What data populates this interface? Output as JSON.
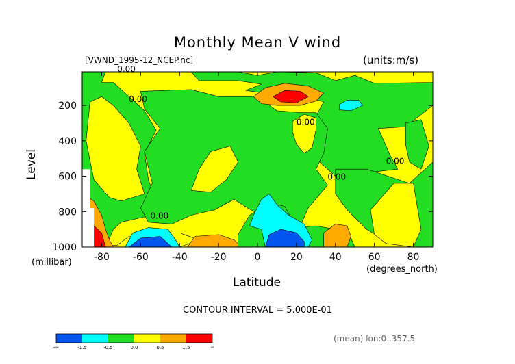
{
  "chart_data": {
    "type": "heatmap",
    "title": "Monthly Mean V wind",
    "source_label": "[VWND_1995-12_NCEP.nc]",
    "units_label": "(units:m/s)",
    "xlabel": "Latitude",
    "x_units": "(degrees_north)",
    "ylabel": "Level",
    "y_units": "(millibar)",
    "xlim": [
      -90,
      90
    ],
    "ylim": [
      1000,
      10
    ],
    "x_ticks": [
      -80,
      -60,
      -40,
      -20,
      0,
      20,
      40,
      60,
      80
    ],
    "y_ticks": [
      200,
      400,
      600,
      800,
      1000
    ],
    "contour_interval_text": "CONTOUR INTERVAL = 5.000E-01",
    "contour_labels": [
      {
        "text": "0.00",
        "lat": -72,
        "lev": 10
      },
      {
        "text": "0.00",
        "lat": -66,
        "lev": 180
      },
      {
        "text": "0.00",
        "lat": -55,
        "lev": 840
      },
      {
        "text": "0.00",
        "lat": 20,
        "lev": 310
      },
      {
        "text": "0.00",
        "lat": 36,
        "lev": 620
      },
      {
        "text": "0.00",
        "lat": 66,
        "lev": 530
      }
    ],
    "colorbar": {
      "colors": [
        "#0055ee",
        "#00ffff",
        "#22dd22",
        "#ffff00",
        "#ffaa00",
        "#ff0000"
      ],
      "tick_labels": [
        "-∞",
        "-1.5",
        "-0.5",
        "0.0",
        "0.5",
        "1.5",
        "∞"
      ]
    },
    "regions": [
      {
        "color": "#ffff00",
        "points": [
          [
            -90,
            10
          ],
          [
            90,
            10
          ],
          [
            90,
            1000
          ],
          [
            -90,
            1000
          ]
        ]
      },
      {
        "color": "#22dd22",
        "points": [
          [
            -90,
            10
          ],
          [
            -78,
            10
          ],
          [
            -80,
            70
          ],
          [
            -74,
            70
          ],
          [
            -66,
            150
          ],
          [
            -58,
            230
          ],
          [
            -52,
            340
          ],
          [
            -58,
            470
          ],
          [
            -56,
            620
          ],
          [
            -52,
            740
          ],
          [
            -58,
            830
          ],
          [
            -70,
            860
          ],
          [
            -74,
            900
          ],
          [
            -78,
            1000
          ],
          [
            -90,
            1000
          ]
        ]
      },
      {
        "color": "#ffff00",
        "points": [
          [
            -86,
            180
          ],
          [
            -80,
            150
          ],
          [
            -74,
            200
          ],
          [
            -66,
            300
          ],
          [
            -60,
            430
          ],
          [
            -62,
            560
          ],
          [
            -58,
            700
          ],
          [
            -70,
            740
          ],
          [
            -76,
            720
          ],
          [
            -84,
            620
          ],
          [
            -88,
            400
          ]
        ]
      },
      {
        "color": "#22dd22",
        "points": [
          [
            -66,
            10
          ],
          [
            -34,
            10
          ],
          [
            -30,
            60
          ],
          [
            -10,
            60
          ],
          [
            2,
            80
          ],
          [
            -6,
            115
          ],
          [
            10,
            140
          ],
          [
            22,
            170
          ],
          [
            28,
            160
          ],
          [
            34,
            180
          ],
          [
            30,
            260
          ],
          [
            26,
            340
          ],
          [
            28,
            420
          ],
          [
            32,
            520
          ],
          [
            40,
            600
          ],
          [
            56,
            580
          ],
          [
            72,
            560
          ],
          [
            68,
            480
          ],
          [
            62,
            330
          ],
          [
            76,
            320
          ],
          [
            90,
            200
          ],
          [
            90,
            10
          ],
          [
            90,
            70
          ],
          [
            60,
            75
          ],
          [
            50,
            30
          ],
          [
            40,
            60
          ],
          [
            30,
            15
          ],
          [
            10,
            10
          ],
          [
            0,
            30
          ],
          [
            -10,
            10
          ],
          [
            -34,
            10
          ]
        ]
      },
      {
        "color": "#22dd22",
        "points": [
          [
            -60,
            120
          ],
          [
            -34,
            110
          ],
          [
            -20,
            150
          ],
          [
            0,
            150
          ],
          [
            10,
            230
          ],
          [
            22,
            240
          ],
          [
            30,
            240
          ],
          [
            36,
            330
          ],
          [
            34,
            470
          ],
          [
            30,
            560
          ],
          [
            36,
            650
          ],
          [
            26,
            780
          ],
          [
            22,
            880
          ],
          [
            10,
            870
          ],
          [
            -5,
            780
          ],
          [
            -12,
            730
          ],
          [
            -22,
            790
          ],
          [
            -34,
            820
          ],
          [
            -44,
            870
          ],
          [
            -56,
            860
          ],
          [
            -60,
            780
          ],
          [
            -54,
            640
          ],
          [
            -58,
            460
          ],
          [
            -50,
            330
          ],
          [
            -58,
            220
          ]
        ]
      },
      {
        "color": "#ffff00",
        "points": [
          [
            -34,
            680
          ],
          [
            -30,
            560
          ],
          [
            -24,
            460
          ],
          [
            -14,
            430
          ],
          [
            -10,
            520
          ],
          [
            -16,
            620
          ],
          [
            -24,
            690
          ]
        ]
      },
      {
        "color": "#ffff00",
        "points": [
          [
            18,
            290
          ],
          [
            24,
            250
          ],
          [
            30,
            270
          ],
          [
            30,
            340
          ],
          [
            28,
            440
          ],
          [
            24,
            470
          ],
          [
            20,
            420
          ],
          [
            18,
            350
          ]
        ]
      },
      {
        "color": "#22dd22",
        "points": [
          [
            40,
            560
          ],
          [
            56,
            560
          ],
          [
            78,
            640
          ],
          [
            90,
            520
          ],
          [
            90,
            1000
          ],
          [
            80,
            1000
          ],
          [
            68,
            980
          ],
          [
            56,
            900
          ],
          [
            46,
            790
          ],
          [
            40,
            700
          ]
        ]
      },
      {
        "color": "#ffff00",
        "points": [
          [
            58,
            790
          ],
          [
            70,
            640
          ],
          [
            80,
            640
          ],
          [
            84,
            900
          ],
          [
            80,
            1000
          ],
          [
            66,
            980
          ],
          [
            60,
            930
          ]
        ]
      },
      {
        "color": "#22dd22",
        "points": [
          [
            76,
            300
          ],
          [
            84,
            280
          ],
          [
            88,
            430
          ],
          [
            84,
            560
          ],
          [
            78,
            520
          ],
          [
            76,
            420
          ]
        ]
      },
      {
        "color": "#ffff00",
        "points": [
          [
            -90,
            1000
          ],
          [
            -80,
            1000
          ],
          [
            -70,
            1000
          ],
          [
            -60,
            1000
          ],
          [
            -40,
            1000
          ],
          [
            -30,
            960
          ],
          [
            -40,
            920
          ],
          [
            -50,
            920
          ],
          [
            -66,
            940
          ],
          [
            -72,
            990
          ]
        ]
      },
      {
        "color": "#ffaa00",
        "points": [
          [
            -36,
            1000
          ],
          [
            -32,
            940
          ],
          [
            -20,
            930
          ],
          [
            -12,
            960
          ],
          [
            -8,
            1000
          ]
        ]
      },
      {
        "color": "#22dd22",
        "points": [
          [
            -10,
            930
          ],
          [
            -4,
            820
          ],
          [
            6,
            750
          ],
          [
            14,
            770
          ],
          [
            20,
            890
          ],
          [
            30,
            880
          ],
          [
            40,
            900
          ],
          [
            48,
            950
          ],
          [
            50,
            1000
          ],
          [
            -10,
            1000
          ]
        ]
      },
      {
        "color": "#ffaa00",
        "points": [
          [
            34,
            1000
          ],
          [
            34,
            920
          ],
          [
            40,
            870
          ],
          [
            46,
            880
          ],
          [
            48,
            940
          ],
          [
            46,
            1000
          ]
        ]
      },
      {
        "color": "#00ffff",
        "points": [
          [
            -2,
            820
          ],
          [
            2,
            730
          ],
          [
            6,
            700
          ],
          [
            10,
            760
          ],
          [
            16,
            820
          ],
          [
            24,
            870
          ],
          [
            28,
            960
          ],
          [
            26,
            1000
          ],
          [
            4,
            1000
          ],
          [
            2,
            900
          ],
          [
            -4,
            880
          ]
        ]
      },
      {
        "color": "#0055ee",
        "points": [
          [
            4,
            1000
          ],
          [
            6,
            930
          ],
          [
            12,
            900
          ],
          [
            20,
            920
          ],
          [
            24,
            970
          ],
          [
            24,
            1000
          ]
        ]
      },
      {
        "color": "#00ffff",
        "points": [
          [
            -68,
            1000
          ],
          [
            -64,
            920
          ],
          [
            -56,
            890
          ],
          [
            -46,
            900
          ],
          [
            -42,
            960
          ],
          [
            -40,
            1000
          ]
        ]
      },
      {
        "color": "#0055ee",
        "points": [
          [
            -66,
            1000
          ],
          [
            -60,
            950
          ],
          [
            -50,
            940
          ],
          [
            -46,
            980
          ],
          [
            -44,
            1000
          ]
        ]
      },
      {
        "color": "#ffaa00",
        "points": [
          [
            -90,
            1000
          ],
          [
            -90,
            700
          ],
          [
            -84,
            740
          ],
          [
            -80,
            820
          ],
          [
            -78,
            900
          ],
          [
            -76,
            960
          ],
          [
            -74,
            1000
          ]
        ]
      },
      {
        "color": "#ff0000",
        "points": [
          [
            -90,
            1000
          ],
          [
            -90,
            870
          ],
          [
            -84,
            880
          ],
          [
            -80,
            920
          ],
          [
            -78,
            1000
          ]
        ]
      },
      {
        "color": "#ffffff",
        "points": [
          [
            -90,
            560
          ],
          [
            -86,
            560
          ],
          [
            -86,
            780
          ],
          [
            -84,
            780
          ],
          [
            -84,
            1000
          ],
          [
            -90,
            1000
          ]
        ]
      },
      {
        "color": "#ffaa00",
        "points": [
          [
            -2,
            150
          ],
          [
            4,
            100
          ],
          [
            14,
            75
          ],
          [
            26,
            90
          ],
          [
            34,
            130
          ],
          [
            30,
            175
          ],
          [
            22,
            200
          ],
          [
            10,
            200
          ],
          [
            2,
            190
          ]
        ]
      },
      {
        "color": "#ff0000",
        "points": [
          [
            8,
            150
          ],
          [
            14,
            115
          ],
          [
            22,
            120
          ],
          [
            26,
            150
          ],
          [
            20,
            185
          ],
          [
            12,
            180
          ]
        ]
      },
      {
        "color": "#00ffff",
        "points": [
          [
            42,
            195
          ],
          [
            46,
            170
          ],
          [
            52,
            170
          ],
          [
            54,
            200
          ],
          [
            48,
            230
          ],
          [
            42,
            225
          ]
        ]
      }
    ]
  },
  "footer_text": "(mean) lon:0..357.5"
}
